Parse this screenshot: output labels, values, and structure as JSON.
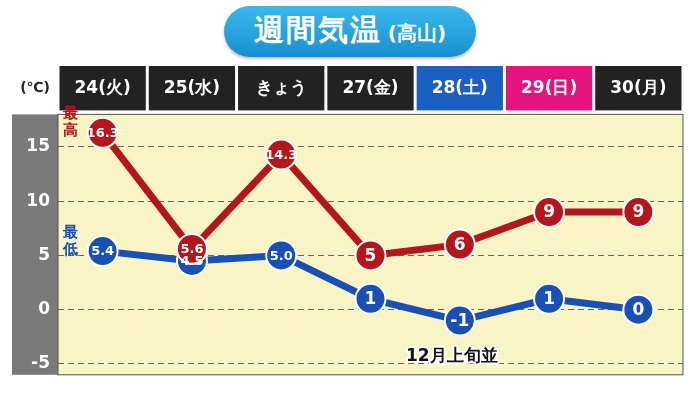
{
  "chart_data": {
    "type": "line",
    "title": "週間気温",
    "subtitle": "(高山)",
    "ylabel": "(℃)",
    "categories": [
      "24(火)",
      "25(水)",
      "きょう",
      "27(金)",
      "28(土)",
      "29(日)",
      "30(月)"
    ],
    "series": [
      {
        "name": "最高",
        "color": "#b5161c",
        "values": [
          16.3,
          5.6,
          14.3,
          5,
          6,
          9,
          9
        ],
        "value_labels": [
          "16.3",
          "5.6",
          "14.3",
          "5",
          "6",
          "9",
          "9"
        ]
      },
      {
        "name": "最低",
        "color": "#1a4fb5",
        "values": [
          5.4,
          4.5,
          5.0,
          1,
          -1,
          1,
          0
        ],
        "value_labels": [
          "5.4",
          "4.5",
          "5.0",
          "1",
          "-1",
          "1",
          "0"
        ]
      }
    ],
    "ylim": [
      -6,
      18
    ],
    "yticks": [
      -5,
      0,
      5,
      10,
      15
    ],
    "grid": true,
    "data_labels": true,
    "marker": "circle",
    "annotations": [
      "12月上旬並"
    ]
  }
}
